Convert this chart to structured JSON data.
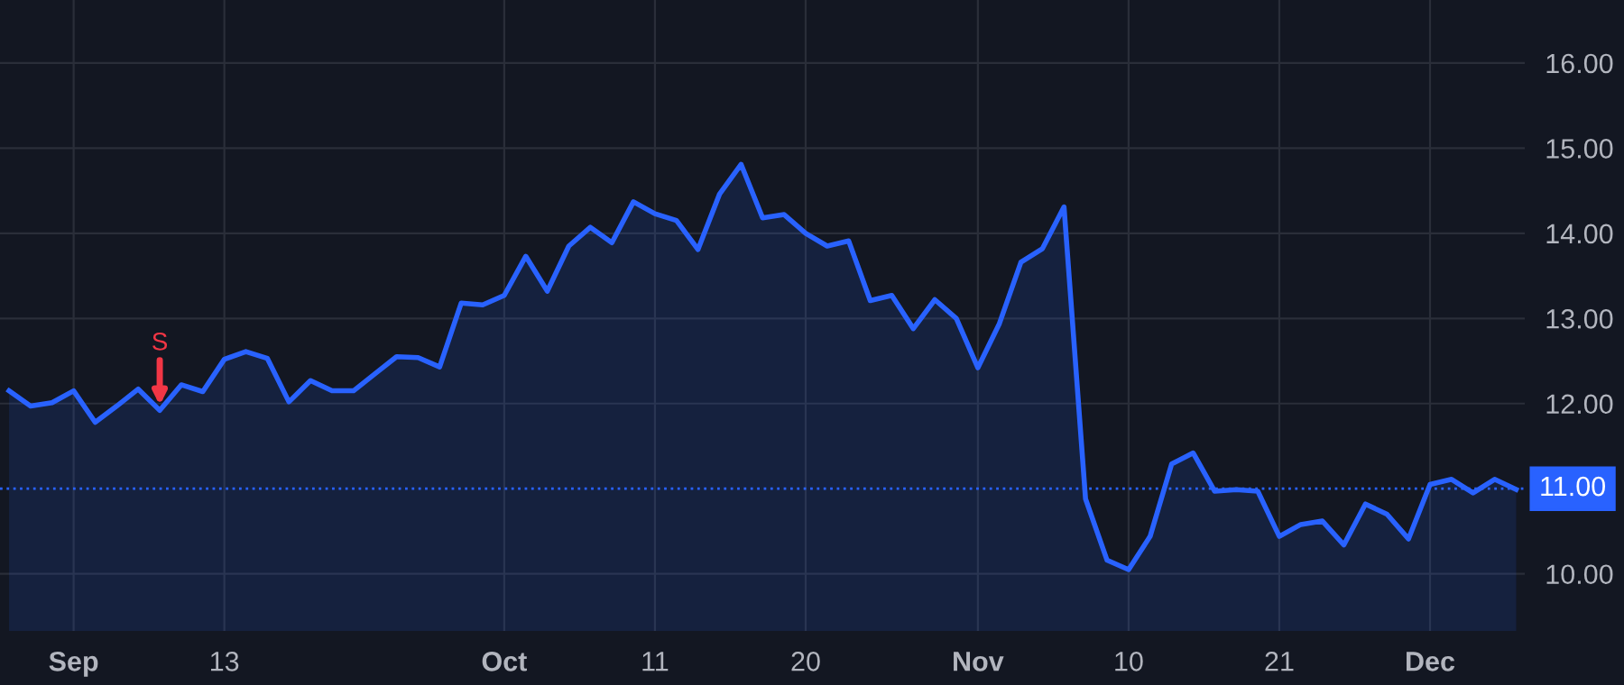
{
  "chart_data": {
    "type": "area",
    "categories": [
      null,
      null,
      null,
      "Sep",
      null,
      null,
      null,
      null,
      null,
      null,
      "13",
      null,
      null,
      null,
      null,
      null,
      null,
      null,
      null,
      null,
      null,
      null,
      null,
      "Oct",
      null,
      null,
      null,
      null,
      null,
      null,
      "11",
      null,
      null,
      null,
      null,
      null,
      null,
      "20",
      null,
      null,
      null,
      null,
      null,
      null,
      null,
      "Nov",
      null,
      null,
      null,
      null,
      null,
      null,
      "10",
      null,
      null,
      null,
      null,
      null,
      null,
      "21",
      null,
      null,
      null,
      null,
      null,
      null,
      "Dec",
      null,
      null,
      null,
      null
    ],
    "series": [
      {
        "color": "#2962ff",
        "values": [
          12.15,
          11.97,
          12.01,
          12.15,
          11.78,
          11.97,
          12.17,
          11.92,
          12.22,
          12.14,
          12.52,
          12.61,
          12.53,
          12.02,
          12.27,
          12.15,
          12.15,
          12.35,
          12.55,
          12.54,
          12.43,
          13.18,
          13.16,
          13.27,
          13.73,
          13.32,
          13.85,
          14.07,
          13.89,
          14.37,
          14.23,
          14.15,
          13.81,
          14.46,
          14.81,
          14.18,
          14.22,
          14.0,
          13.85,
          13.91,
          13.21,
          13.27,
          12.88,
          13.22,
          13.0,
          12.42,
          12.94,
          13.66,
          13.82,
          14.31,
          10.88,
          10.16,
          10.05,
          10.44,
          11.29,
          11.42,
          10.97,
          10.99,
          10.97,
          10.44,
          10.58,
          10.62,
          10.34,
          10.82,
          10.7,
          10.41,
          11.05,
          11.11,
          10.95,
          11.11,
          10.99
        ]
      }
    ],
    "ylim": [
      9.33,
      16.74
    ],
    "yticks": [
      {
        "value": 10,
        "label": "10.00"
      },
      {
        "value": 12,
        "label": "12.00"
      },
      {
        "value": 13,
        "label": "13.00"
      },
      {
        "value": 14,
        "label": "14.00"
      },
      {
        "value": 15,
        "label": "15.00"
      },
      {
        "value": 16,
        "label": "16.00"
      }
    ],
    "grid": true,
    "ref_lines": [
      {
        "axis": "y",
        "value": 11,
        "label": "11.00",
        "color": "#2962ff",
        "line_style": "dotted"
      }
    ],
    "annotations": [
      {
        "text": "S",
        "y": 11.92
      }
    ]
  }
}
